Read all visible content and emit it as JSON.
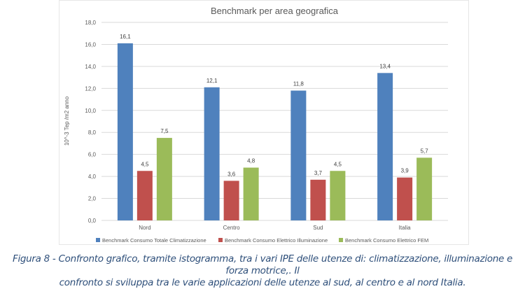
{
  "chart_data": {
    "type": "bar",
    "title": "Benchmark per area geografica",
    "ylabel": "10^-3 Tep /m2 anno",
    "xlabel": "",
    "ylim": [
      0,
      18
    ],
    "yticks": [
      "0,0",
      "2,0",
      "4,0",
      "6,0",
      "8,0",
      "10,0",
      "12,0",
      "14,0",
      "16,0",
      "18,0"
    ],
    "grid": true,
    "legend": "bottom",
    "categories": [
      "Nord",
      "Centro",
      "Sud",
      "Italia"
    ],
    "series": [
      {
        "name": "Benchmark Consumo Totale Climatizzazione",
        "color": "#4f81bd",
        "values": [
          16.1,
          12.1,
          11.8,
          13.4
        ],
        "labels": [
          "16,1",
          "12,1",
          "11,8",
          "13,4"
        ]
      },
      {
        "name": "Benchmark Consumo Elettrico Illuminazione",
        "color": "#c0504d",
        "values": [
          4.5,
          3.6,
          3.7,
          3.9
        ],
        "labels": [
          "4,5",
          "3,6",
          "3,7",
          "3,9"
        ]
      },
      {
        "name": "Benchmark Consumo Elettrico FEM",
        "color": "#9bbb59",
        "values": [
          7.5,
          4.8,
          4.5,
          5.7
        ],
        "labels": [
          "7,5",
          "4,8",
          "4,5",
          "5,7"
        ]
      }
    ]
  },
  "caption": {
    "line1": "Figura 8 - Confronto grafico, tramite istogramma, tra i vari IPE delle utenze di: climatizzazione, illuminazione e forza motrice,. Il",
    "line2": "confronto si sviluppa tra le varie applicazioni delle utenze al sud, al centro e al nord Italia."
  }
}
